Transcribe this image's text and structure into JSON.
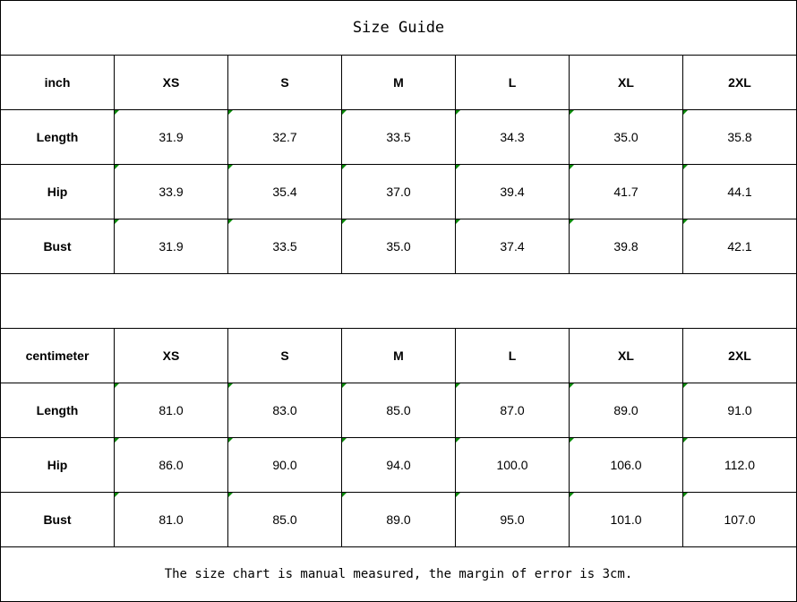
{
  "title": "Size Guide",
  "tables": [
    {
      "unit": "inch",
      "sizes": [
        "XS",
        "S",
        "M",
        "L",
        "XL",
        "2XL"
      ],
      "rows": [
        {
          "label": "Length",
          "values": [
            "31.9",
            "32.7",
            "33.5",
            "34.3",
            "35.0",
            "35.8"
          ]
        },
        {
          "label": "Hip",
          "values": [
            "33.9",
            "35.4",
            "37.0",
            "39.4",
            "41.7",
            "44.1"
          ]
        },
        {
          "label": "Bust",
          "values": [
            "31.9",
            "33.5",
            "35.0",
            "37.4",
            "39.8",
            "42.1"
          ]
        }
      ]
    },
    {
      "unit": "centimeter",
      "sizes": [
        "XS",
        "S",
        "M",
        "L",
        "XL",
        "2XL"
      ],
      "rows": [
        {
          "label": "Length",
          "values": [
            "81.0",
            "83.0",
            "85.0",
            "87.0",
            "89.0",
            "91.0"
          ]
        },
        {
          "label": "Hip",
          "values": [
            "86.0",
            "90.0",
            "94.0",
            "100.0",
            "106.0",
            "112.0"
          ]
        },
        {
          "label": "Bust",
          "values": [
            "81.0",
            "85.0",
            "89.0",
            "95.0",
            "101.0",
            "107.0"
          ]
        }
      ]
    }
  ],
  "note": "The size chart is manual measured, the margin of error is 3cm.",
  "colors": {
    "cell_marker": "#0a8a0a",
    "border": "#000000"
  }
}
